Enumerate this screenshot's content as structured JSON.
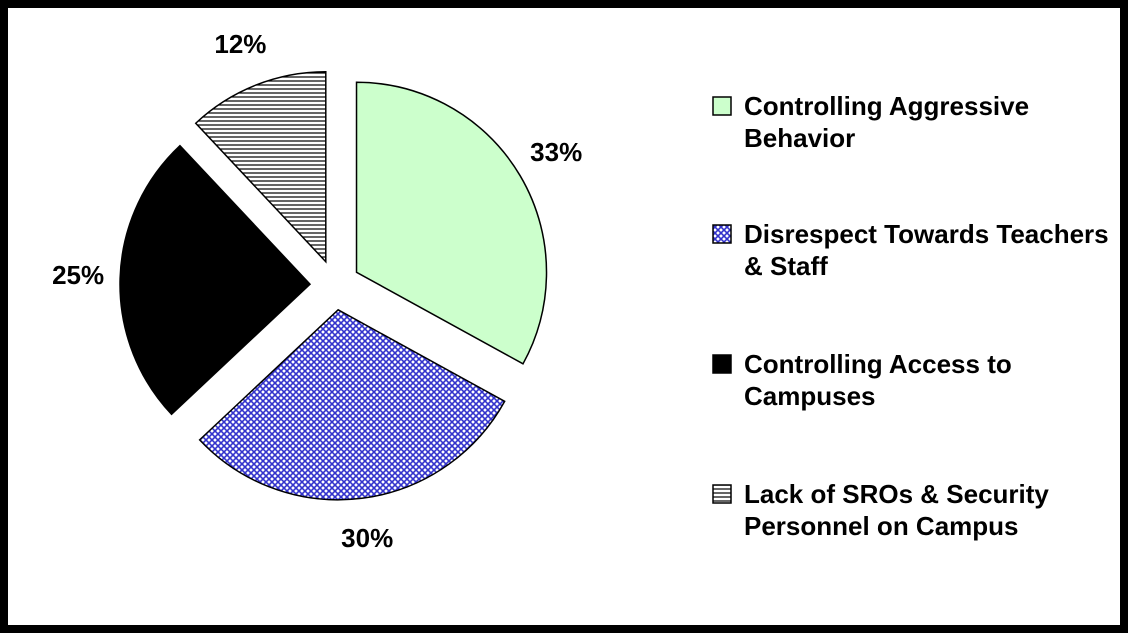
{
  "chart_data": {
    "type": "pie",
    "categories": [
      "Controlling Aggressive Behavior",
      "Disrespect Towards Teachers & Staff",
      "Controlling Access to Campuses",
      "Lack of SROs & Security Personnel on Campus"
    ],
    "values": [
      33,
      30,
      25,
      12
    ],
    "value_labels": [
      "33%",
      "30%",
      "25%",
      "12%"
    ],
    "colors": [
      "#ccffcc",
      "#3333cc",
      "#000000",
      "#000000"
    ],
    "hatches": [
      "none",
      "crosshatch",
      "none",
      "horizontal"
    ],
    "legend": "right"
  }
}
